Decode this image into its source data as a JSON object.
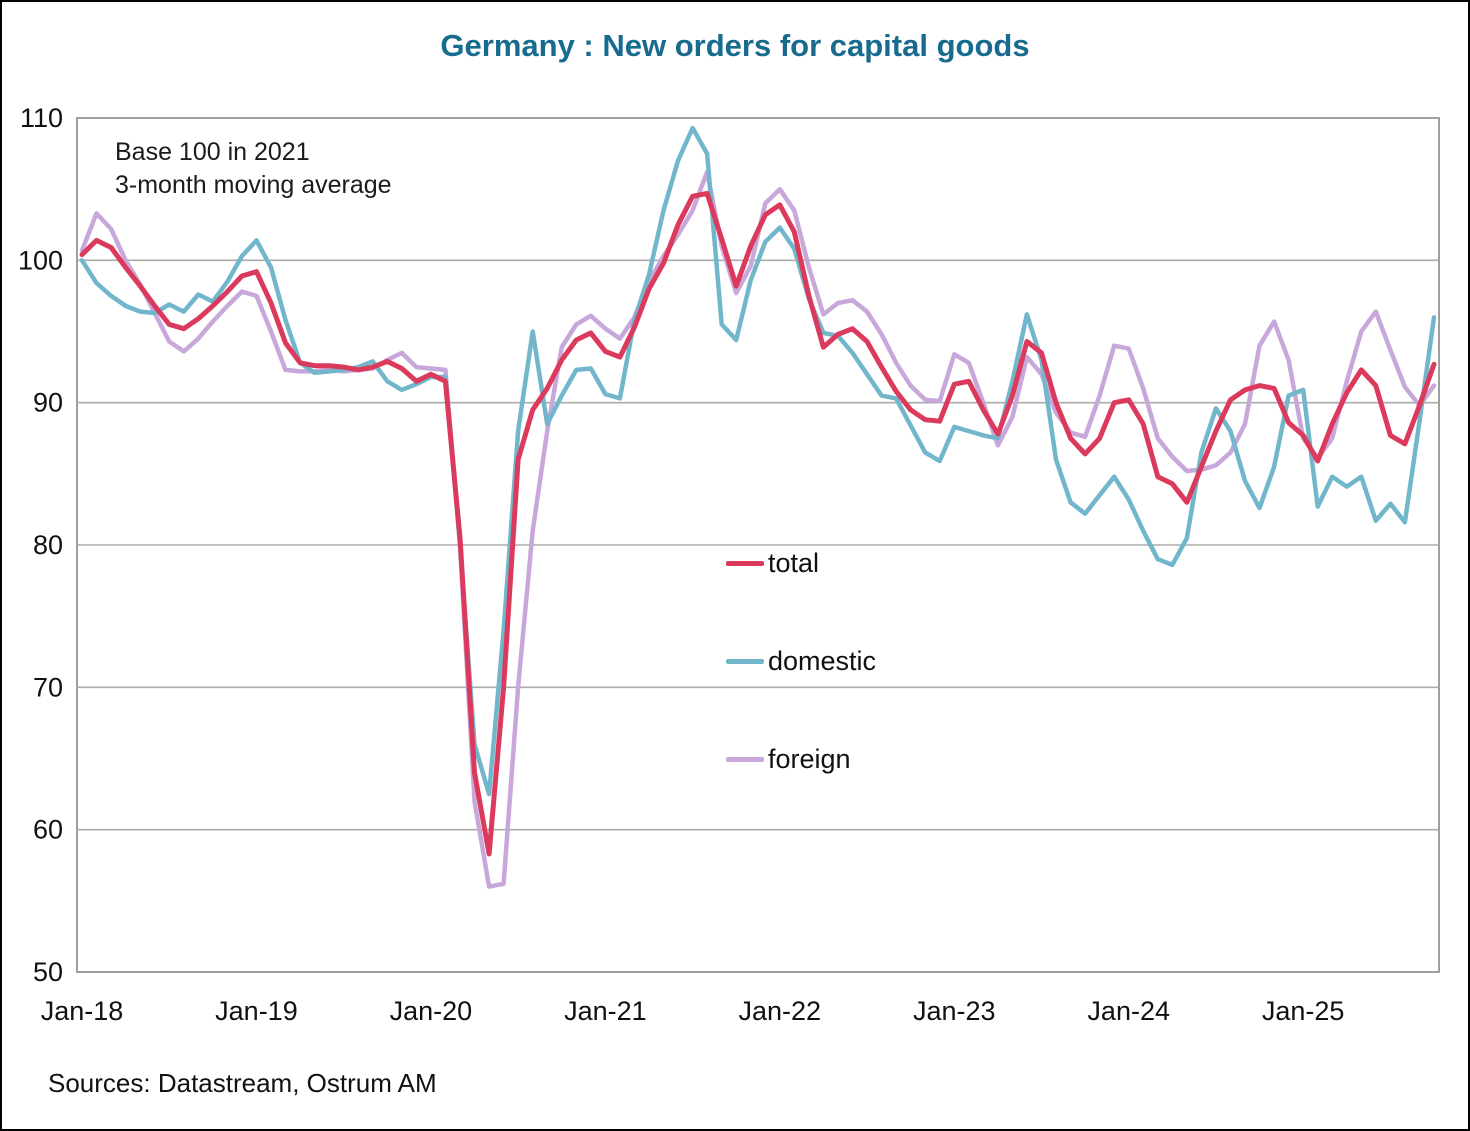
{
  "chart_data": {
    "type": "line",
    "title": "Germany : New orders for capital goods",
    "title_color": "#176B8E",
    "annotation_line1": "Base 100 in 2021",
    "annotation_line2": "3-month moving average",
    "source": "Sources: Datastream, Ostrum AM",
    "ylim": [
      50,
      110
    ],
    "y_ticks": [
      110,
      100,
      90,
      80,
      70,
      60,
      50
    ],
    "x_tick_labels": [
      "Jan-18",
      "Jan-19",
      "Jan-20",
      "Jan-21",
      "Jan-22",
      "Jan-23",
      "Jan-24",
      "Jan-25"
    ],
    "x_tick_month_index": [
      0,
      12,
      24,
      36,
      48,
      60,
      72,
      84
    ],
    "x_start": "Jan-18",
    "x_end": "Oct-25",
    "grid": "horizontal-only",
    "legend_position": "inside-center",
    "axis_color": "#9f9f9f",
    "grid_color": "#ababab",
    "series": [
      {
        "name": "total",
        "color": "#DC3A5C",
        "stroke_width": 5,
        "values": [
          100.4,
          101.4,
          100.9,
          99.5,
          98.2,
          96.8,
          95.5,
          95.2,
          95.9,
          96.8,
          97.8,
          98.9,
          99.2,
          97.0,
          94.2,
          92.8,
          92.6,
          92.6,
          92.5,
          92.3,
          92.5,
          92.9,
          92.4,
          91.5,
          92.0,
          91.5,
          80.5,
          64.0,
          58.3,
          70.0,
          86.0,
          89.5,
          91.0,
          93.0,
          94.4,
          94.9,
          93.6,
          93.2,
          95.3,
          98.0,
          99.8,
          102.5,
          104.5,
          104.7,
          101.5,
          98.2,
          101.0,
          103.2,
          103.9,
          102.0,
          97.5,
          93.9,
          94.8,
          95.2,
          94.3,
          92.5,
          90.8,
          89.5,
          88.8,
          88.7,
          91.3,
          91.5,
          89.5,
          87.8,
          90.5,
          94.3,
          93.5,
          90.0,
          87.5,
          86.4,
          87.5,
          90.0,
          90.2,
          88.5,
          84.8,
          84.3,
          83.0,
          85.5,
          88.0,
          90.2,
          90.9,
          91.2,
          91.0,
          88.6,
          87.7,
          85.9,
          88.5,
          90.7,
          92.3,
          91.2,
          87.7,
          87.1,
          89.8,
          92.7
        ]
      },
      {
        "name": "domestic",
        "color": "#72B6CC",
        "stroke_width": 4.5,
        "values": [
          100.0,
          98.4,
          97.5,
          96.8,
          96.4,
          96.3,
          96.9,
          96.4,
          97.6,
          97.1,
          98.5,
          100.3,
          101.4,
          99.5,
          95.8,
          92.8,
          92.1,
          92.2,
          92.3,
          92.5,
          92.9,
          91.5,
          90.9,
          91.3,
          91.8,
          91.8,
          80.0,
          66.0,
          62.5,
          74.0,
          88.0,
          95.0,
          88.5,
          90.5,
          92.3,
          92.4,
          90.6,
          90.3,
          95.8,
          99.0,
          103.5,
          107.0,
          109.3,
          107.5,
          95.5,
          94.4,
          98.6,
          101.3,
          102.3,
          100.8,
          97.3,
          94.9,
          94.7,
          93.5,
          92.0,
          90.5,
          90.3,
          88.4,
          86.5,
          85.9,
          88.3,
          88.0,
          87.7,
          87.5,
          91.5,
          96.2,
          93.0,
          86.0,
          83.0,
          82.2,
          83.5,
          84.8,
          83.2,
          81.0,
          79.0,
          78.6,
          80.5,
          86.5,
          89.6,
          88.0,
          84.5,
          82.6,
          85.5,
          90.5,
          90.9,
          82.7,
          84.8,
          84.1,
          84.8,
          81.7,
          82.9,
          81.6,
          88.7,
          96.0
        ]
      },
      {
        "name": "foreign",
        "color": "#C8A7DA",
        "stroke_width": 4.5,
        "values": [
          100.7,
          103.3,
          102.2,
          100.0,
          98.3,
          96.3,
          94.3,
          93.6,
          94.5,
          95.7,
          96.8,
          97.8,
          97.5,
          95.0,
          92.3,
          92.2,
          92.2,
          92.3,
          92.2,
          92.3,
          92.4,
          93.0,
          93.5,
          92.5,
          92.4,
          92.3,
          80.0,
          62.0,
          56.0,
          56.2,
          70.0,
          81.0,
          88.0,
          93.9,
          95.5,
          96.1,
          95.2,
          94.5,
          96.0,
          98.5,
          100.3,
          101.8,
          103.5,
          106.2,
          101.0,
          97.7,
          99.6,
          104.0,
          105.0,
          103.5,
          99.5,
          96.2,
          97.0,
          97.2,
          96.4,
          94.8,
          92.8,
          91.2,
          90.2,
          90.1,
          93.4,
          92.8,
          90.0,
          87.0,
          89.0,
          93.2,
          92.0,
          89.3,
          87.9,
          87.6,
          90.5,
          94.0,
          93.8,
          91.0,
          87.5,
          86.2,
          85.2,
          85.3,
          85.6,
          86.5,
          88.5,
          94.0,
          95.7,
          93.0,
          87.5,
          86.1,
          87.5,
          91.5,
          95.0,
          96.4,
          93.7,
          91.1,
          89.8,
          91.2
        ]
      }
    ]
  }
}
